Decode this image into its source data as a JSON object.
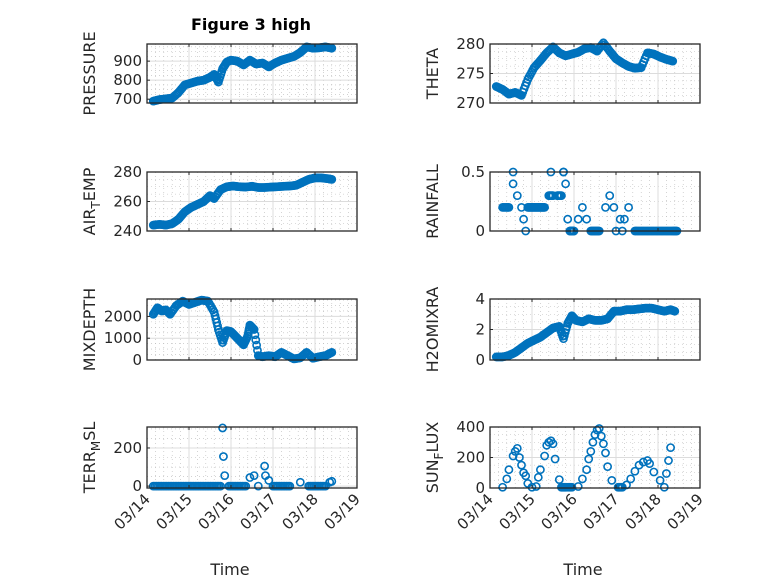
{
  "figure_title": "Figure 3 high",
  "colors": {
    "marker": "#0072BD",
    "axis": "#262626",
    "grid_major": "#dcdcdc",
    "grid_minor": "#b8b8b8",
    "background": "#ffffff"
  },
  "chart_data": [
    {
      "type": "scatter",
      "id": "pressure",
      "title": "Figure 3 high",
      "xlabel": "",
      "ylabel": "PRESSURE",
      "ylim": [
        680,
        990
      ],
      "yticks": [
        700,
        800,
        900
      ],
      "ytick_labels": [
        "700",
        "800",
        "900"
      ],
      "xlim": [
        0,
        5
      ],
      "grid": true,
      "minor_grid": true,
      "x": [
        0.15,
        0.3,
        0.45,
        0.6,
        0.75,
        0.9,
        1.05,
        1.2,
        1.35,
        1.5,
        1.6,
        1.7,
        1.8,
        1.9,
        2.0,
        2.15,
        2.3,
        2.45,
        2.6,
        2.75,
        2.9,
        3.05,
        3.2,
        3.35,
        3.5,
        3.65,
        3.8,
        3.95,
        4.1,
        4.25,
        4.4
      ],
      "y": [
        690,
        698,
        702,
        706,
        735,
        775,
        785,
        795,
        800,
        815,
        830,
        790,
        860,
        895,
        905,
        900,
        880,
        905,
        885,
        890,
        870,
        890,
        905,
        915,
        925,
        945,
        975,
        968,
        970,
        975,
        968
      ]
    },
    {
      "type": "scatter",
      "id": "theta",
      "title": "",
      "xlabel": "",
      "ylabel": "THETA",
      "ylim": [
        270,
        280
      ],
      "yticks": [
        270,
        275,
        280
      ],
      "ytick_labels": [
        "270",
        "275",
        "280"
      ],
      "xlim": [
        0,
        5
      ],
      "grid": true,
      "minor_grid": true,
      "x": [
        0.15,
        0.3,
        0.45,
        0.6,
        0.75,
        0.9,
        1.05,
        1.2,
        1.35,
        1.5,
        1.65,
        1.8,
        1.95,
        2.1,
        2.25,
        2.4,
        2.55,
        2.7,
        2.85,
        3.0,
        3.15,
        3.3,
        3.45,
        3.6,
        3.75,
        3.9,
        4.05,
        4.2,
        4.35
      ],
      "y": [
        272.8,
        272.3,
        271.5,
        271.8,
        271.3,
        274.0,
        276.0,
        277.2,
        278.5,
        279.5,
        278.5,
        278.0,
        278.3,
        278.6,
        279.2,
        279.4,
        278.8,
        280.2,
        278.8,
        277.5,
        276.8,
        276.2,
        275.9,
        276.0,
        278.5,
        278.3,
        277.8,
        277.4,
        277.1
      ]
    },
    {
      "type": "scatter",
      "id": "air_temp",
      "title": "",
      "xlabel": "",
      "ylabel_main": "AIR",
      "ylabel_sub": "T",
      "ylabel_rest": "EMP",
      "ylabel": "AIR_TEMP",
      "ylim": [
        240,
        280
      ],
      "yticks": [
        240,
        260,
        280
      ],
      "ytick_labels": [
        "240",
        "260",
        "280"
      ],
      "xlim": [
        0,
        5
      ],
      "grid": true,
      "minor_grid": true,
      "x": [
        0.15,
        0.3,
        0.45,
        0.6,
        0.75,
        0.9,
        1.05,
        1.2,
        1.35,
        1.5,
        1.6,
        1.75,
        1.9,
        2.05,
        2.2,
        2.35,
        2.5,
        2.65,
        2.8,
        2.95,
        3.1,
        3.25,
        3.4,
        3.55,
        3.7,
        3.85,
        4.0,
        4.15,
        4.3,
        4.4
      ],
      "y": [
        244,
        244.5,
        244,
        245,
        248,
        253,
        256,
        258,
        260,
        264,
        262,
        268,
        270,
        270.5,
        270,
        269.8,
        270.3,
        269.5,
        269.5,
        269.8,
        270,
        270.3,
        270.5,
        271,
        273,
        275,
        276,
        276,
        275.5,
        275
      ]
    },
    {
      "type": "scatter",
      "id": "rainfall",
      "title": "",
      "xlabel": "",
      "ylabel": "RAINFALL",
      "ylim": [
        0,
        0.5
      ],
      "yticks": [
        0,
        0.5
      ],
      "ytick_labels": [
        "0",
        "0.5"
      ],
      "xlim": [
        0,
        5
      ],
      "grid": true,
      "minor_grid": true,
      "x": [
        0.3,
        0.45,
        0.55,
        0.55,
        0.65,
        0.75,
        0.8,
        0.85,
        0.9,
        1.0,
        1.1,
        1.2,
        1.3,
        1.4,
        1.5,
        1.45,
        1.6,
        1.7,
        1.75,
        1.8,
        1.75,
        1.85,
        1.9,
        1.95,
        2.0,
        2.1,
        2.2,
        2.3,
        2.4,
        2.5,
        2.6,
        2.75,
        2.85,
        2.95,
        3.0,
        3.1,
        3.15,
        3.2,
        3.3,
        3.45,
        3.6,
        3.75,
        3.9,
        4.05,
        4.2,
        4.35,
        4.45
      ],
      "y": [
        0.2,
        0.2,
        0.5,
        0.4,
        0.3,
        0.2,
        0.1,
        0.0,
        0.2,
        0.2,
        0.2,
        0.2,
        0.2,
        0.3,
        0.3,
        0.5,
        0.3,
        0.3,
        0.5,
        0.4,
        0.5,
        0.1,
        0.0,
        0.0,
        0.0,
        0.1,
        0.2,
        0.1,
        0.0,
        0.0,
        0.0,
        0.2,
        0.3,
        0.2,
        0.0,
        0.1,
        0.0,
        0.1,
        0.2,
        0.0,
        0.0,
        0.0,
        0.0,
        0.0,
        0.0,
        0.0,
        0.0
      ]
    },
    {
      "type": "scatter",
      "id": "mixdepth",
      "title": "",
      "xlabel": "",
      "ylabel": "MIXDEPTH",
      "ylim": [
        0,
        2800
      ],
      "yticks": [
        0,
        1000,
        2000
      ],
      "ytick_labels": [
        "0",
        "1000",
        "2000"
      ],
      "xlim": [
        0,
        5
      ],
      "grid": true,
      "minor_grid": true,
      "x": [
        0.15,
        0.25,
        0.35,
        0.45,
        0.55,
        0.7,
        0.85,
        1.0,
        1.15,
        1.3,
        1.45,
        1.6,
        1.7,
        1.8,
        1.9,
        2.0,
        2.1,
        2.2,
        2.3,
        2.4,
        2.45,
        2.55,
        2.65,
        2.75,
        2.9,
        3.05,
        3.2,
        3.35,
        3.5,
        3.65,
        3.8,
        3.95,
        4.1,
        4.25,
        4.4
      ],
      "y": [
        2100,
        2400,
        2250,
        2300,
        2100,
        2500,
        2700,
        2550,
        2650,
        2750,
        2700,
        2200,
        1400,
        800,
        1350,
        1300,
        1100,
        900,
        700,
        1100,
        1600,
        1400,
        200,
        150,
        200,
        150,
        350,
        200,
        50,
        100,
        350,
        80,
        150,
        200,
        350
      ]
    },
    {
      "type": "scatter",
      "id": "h2omixra",
      "title": "",
      "xlabel": "",
      "ylabel": "H2OMIXRA",
      "ylim": [
        0,
        4
      ],
      "yticks": [
        0,
        2,
        4
      ],
      "ytick_labels": [
        "0",
        "2",
        "4"
      ],
      "xlim": [
        0,
        5
      ],
      "grid": true,
      "minor_grid": true,
      "x": [
        0.15,
        0.3,
        0.45,
        0.6,
        0.75,
        0.9,
        1.05,
        1.2,
        1.35,
        1.5,
        1.65,
        1.75,
        1.85,
        1.95,
        2.05,
        2.2,
        2.35,
        2.5,
        2.65,
        2.8,
        2.95,
        3.1,
        3.25,
        3.4,
        3.55,
        3.7,
        3.85,
        4.0,
        4.15,
        4.3,
        4.4
      ],
      "y": [
        0.2,
        0.2,
        0.3,
        0.5,
        0.8,
        1.1,
        1.3,
        1.5,
        1.8,
        2.1,
        2.2,
        1.4,
        2.4,
        2.9,
        2.6,
        2.5,
        2.7,
        2.6,
        2.6,
        2.7,
        3.2,
        3.2,
        3.3,
        3.3,
        3.35,
        3.4,
        3.4,
        3.3,
        3.2,
        3.3,
        3.2
      ]
    },
    {
      "type": "scatter",
      "id": "terr_msl",
      "title": "",
      "xlabel": "Time",
      "ylabel_main": "TERR",
      "ylabel_sub": "M",
      "ylabel_rest": "SL",
      "ylabel": "TERR_MSL",
      "ylim": [
        -10,
        310
      ],
      "yticks": [
        0,
        200
      ],
      "ytick_labels": [
        "0",
        "200"
      ],
      "xlim": [
        0,
        5
      ],
      "xticks": [
        0,
        1,
        2,
        3,
        4,
        5
      ],
      "xtick_labels": [
        "03/14",
        "03/15",
        "03/16",
        "03/17",
        "03/18",
        "03/19"
      ],
      "grid": true,
      "minor_grid": true,
      "x": [
        0.15,
        0.35,
        0.55,
        0.75,
        0.95,
        1.15,
        1.35,
        1.55,
        1.75,
        1.8,
        1.82,
        1.85,
        1.95,
        2.15,
        2.35,
        2.45,
        2.55,
        2.65,
        2.8,
        2.82,
        2.9,
        3.0,
        3.2,
        3.4,
        3.65,
        3.85,
        4.05,
        4.25,
        4.35,
        4.4
      ],
      "y": [
        0,
        0,
        0,
        0,
        0,
        0,
        0,
        0,
        0,
        305,
        155,
        55,
        0,
        0,
        0,
        45,
        55,
        0,
        105,
        55,
        30,
        0,
        0,
        0,
        20,
        0,
        0,
        0,
        20,
        25
      ]
    },
    {
      "type": "scatter",
      "id": "sun_flux",
      "title": "",
      "xlabel": "Time",
      "ylabel_main": "SUN",
      "ylabel_sub": "F",
      "ylabel_rest": "LUX",
      "ylabel": "SUN_FLUX",
      "ylim": [
        0,
        400
      ],
      "yticks": [
        0,
        200,
        400
      ],
      "ytick_labels": [
        "0",
        "200",
        "400"
      ],
      "xlim": [
        0,
        5
      ],
      "xticks": [
        0,
        1,
        2,
        3,
        4,
        5
      ],
      "xtick_labels": [
        "03/14",
        "03/15",
        "03/16",
        "03/17",
        "03/18",
        "03/19"
      ],
      "grid": true,
      "minor_grid": true,
      "x": [
        0.3,
        0.4,
        0.45,
        0.55,
        0.6,
        0.65,
        0.7,
        0.75,
        0.8,
        0.85,
        0.9,
        1.0,
        1.1,
        1.15,
        1.2,
        1.3,
        1.35,
        1.4,
        1.45,
        1.5,
        1.55,
        1.65,
        1.7,
        1.8,
        1.95,
        2.1,
        2.2,
        2.3,
        2.35,
        2.4,
        2.45,
        2.5,
        2.55,
        2.6,
        2.65,
        2.7,
        2.75,
        2.8,
        2.9,
        3.05,
        3.15,
        3.25,
        3.35,
        3.45,
        3.55,
        3.65,
        3.75,
        3.8,
        3.9,
        4.05,
        4.15,
        4.2,
        4.25,
        4.3
      ],
      "y": [
        5,
        60,
        120,
        210,
        240,
        260,
        200,
        150,
        100,
        80,
        30,
        5,
        10,
        70,
        120,
        210,
        280,
        300,
        310,
        290,
        190,
        55,
        5,
        5,
        5,
        10,
        60,
        120,
        190,
        240,
        300,
        350,
        380,
        390,
        340,
        290,
        230,
        140,
        50,
        5,
        5,
        20,
        60,
        110,
        150,
        170,
        180,
        160,
        105,
        50,
        5,
        95,
        180,
        265
      ]
    }
  ]
}
